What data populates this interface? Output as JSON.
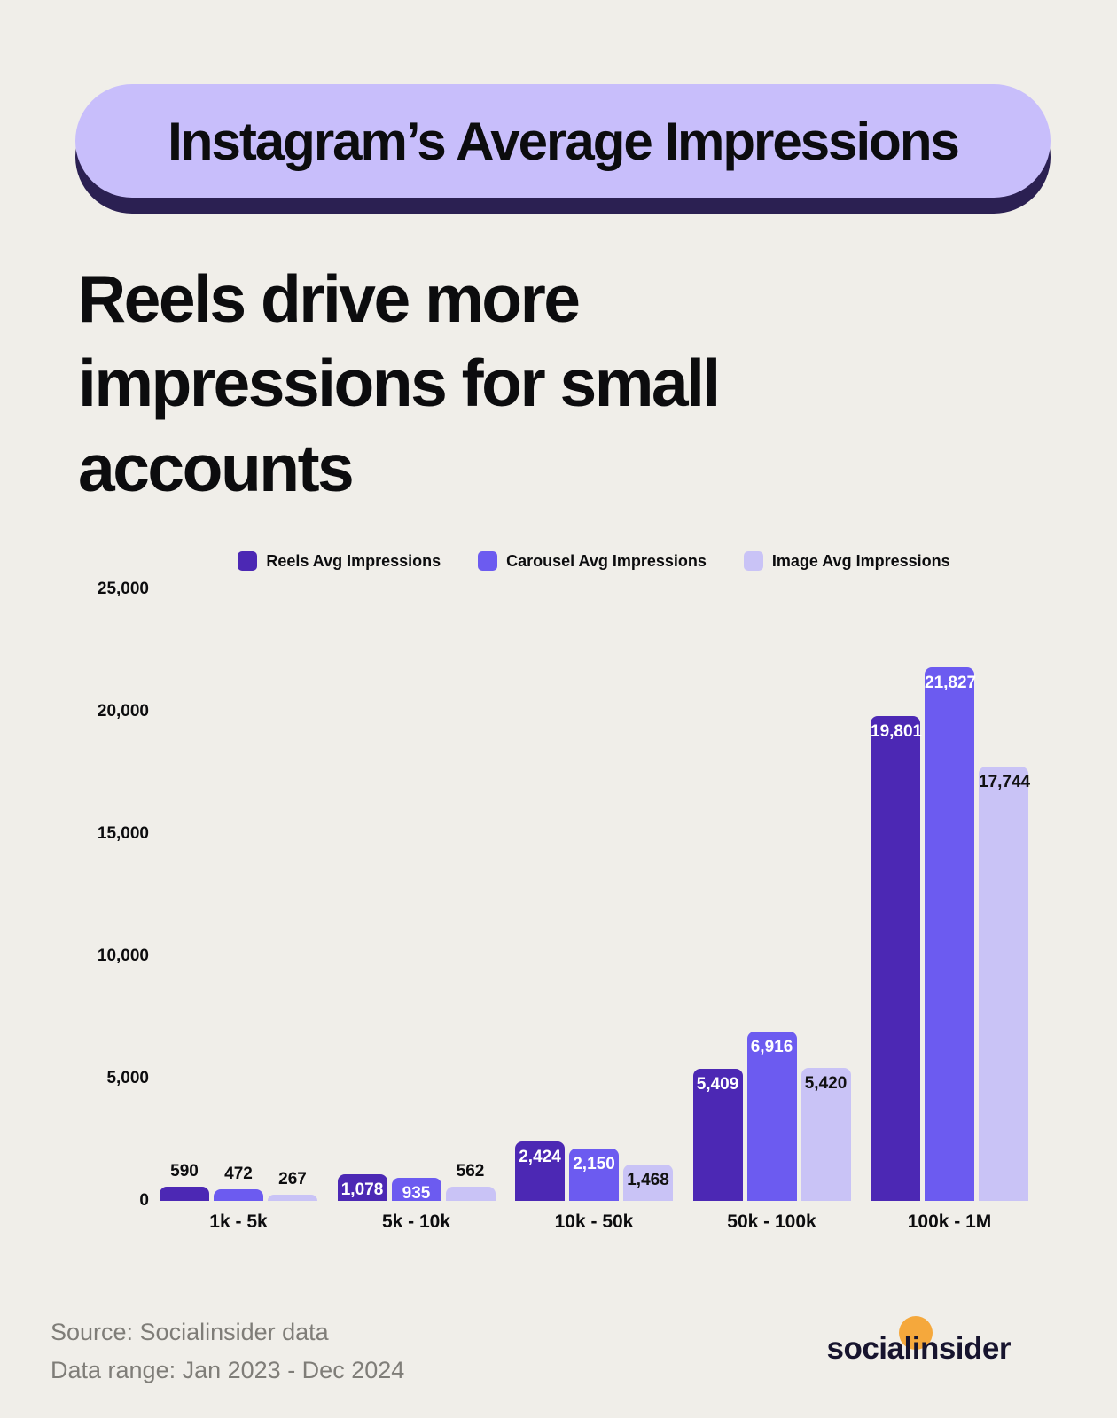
{
  "badge": {
    "title": "Instagram’s Average Impressions"
  },
  "heading_lines": [
    "Reels drive more",
    "impressions for small",
    "accounts"
  ],
  "chart_data": {
    "type": "bar",
    "title": "Instagram’s Average Impressions",
    "subtitle": "Reels drive more impressions for small accounts",
    "categories": [
      "1k - 5k",
      "5k - 10k",
      "10k - 50k",
      "50k - 100k",
      "100k - 1M"
    ],
    "series": [
      {
        "name": "Reels Avg Impressions",
        "color": "#4C28B4",
        "values": [
          590,
          1078,
          2424,
          5409,
          19801
        ]
      },
      {
        "name": "Carousel Avg Impressions",
        "color": "#6C5BF0",
        "values": [
          472,
          935,
          2150,
          6916,
          21827
        ]
      },
      {
        "name": "Image Avg Impressions",
        "color": "#C9C3F6",
        "values": [
          267,
          562,
          1468,
          5420,
          17744
        ]
      }
    ],
    "xlabel": "",
    "ylabel": "",
    "ylim": [
      0,
      25000
    ],
    "y_tick_values": [
      25000,
      20000,
      15000,
      10000,
      5000,
      0
    ],
    "y_tick_labels": [
      "25,000",
      "20,000",
      "15,000",
      "10,000",
      "5,000",
      "0"
    ],
    "grid": false,
    "legend_position": "top",
    "value_label_inside_threshold": 900
  },
  "footer": {
    "source": "Source: Socialinsider data",
    "range": "Data range: Jan 2023 - Dec 2024",
    "logo_pre": "social",
    "logo_accent": "i",
    "logo_post": "nsider"
  }
}
